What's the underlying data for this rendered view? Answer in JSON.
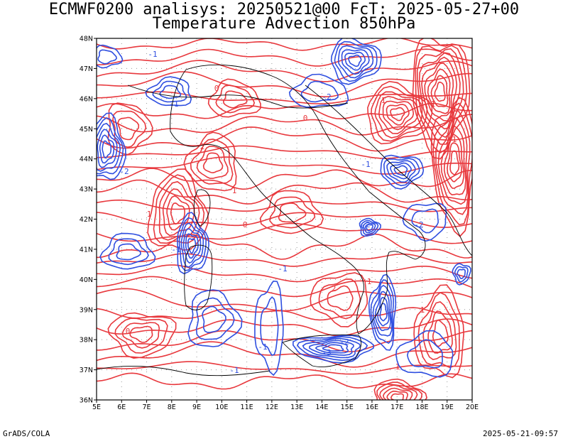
{
  "header": {
    "title_line1": "ECMWF0200 analisys: 20250521@00 FcT: 2025-05-27+00",
    "title_line2": "Temperature Advection 850hPa"
  },
  "map": {
    "lon_ticks": [
      "5E",
      "6E",
      "7E",
      "8E",
      "9E",
      "10E",
      "11E",
      "12E",
      "13E",
      "14E",
      "15E",
      "16E",
      "17E",
      "18E",
      "19E",
      "20E"
    ],
    "lat_ticks": [
      "36N",
      "37N",
      "38N",
      "39N",
      "40N",
      "41N",
      "42N",
      "43N",
      "44N",
      "45N",
      "46N",
      "47N",
      "48N"
    ],
    "lon_range": [
      5,
      20
    ],
    "lat_range": [
      36,
      48
    ],
    "grid": "dotted",
    "colors": {
      "positive": "#e8383d",
      "negative": "#2f4fe0",
      "coast": "#000000",
      "grid": "#9a9a9a"
    },
    "contour_labels_positive": [
      "0",
      "1",
      "1",
      "0",
      "1",
      "2",
      "1",
      "0",
      "1",
      "1",
      "0",
      "1",
      "2",
      "1"
    ],
    "contour_labels_negative": [
      "-1",
      "-2",
      "-1",
      "-1",
      "-2",
      "-1",
      "-2",
      "-1",
      "-1",
      "-2",
      "-3",
      "-2",
      "-1"
    ]
  },
  "footer": {
    "credit": "GrADS/COLA",
    "timestamp": "2025-05-21-09:57"
  }
}
